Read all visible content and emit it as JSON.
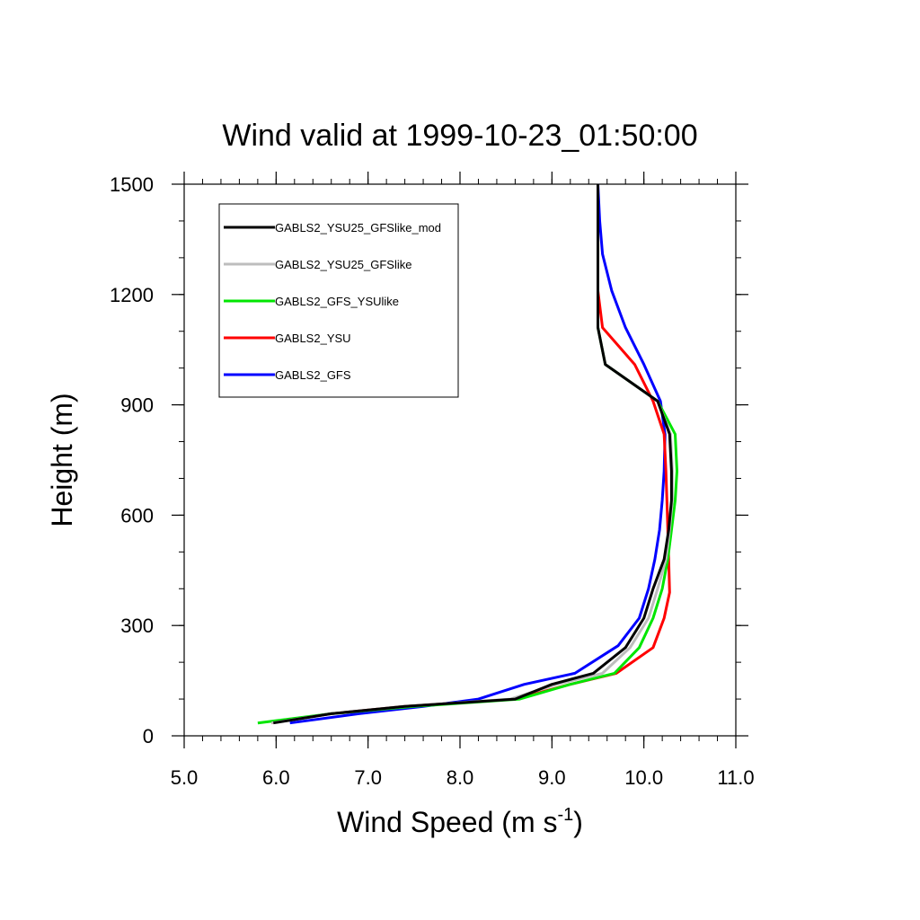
{
  "chart_data": {
    "type": "line",
    "title": "Wind valid at 1999-10-23_01:50:00",
    "xlabel": "Wind Speed (m s",
    "xlabel_superscript": "-1",
    "xlabel_suffix": ")",
    "ylabel": "Height (m)",
    "xlim": [
      5.0,
      11.0
    ],
    "ylim": [
      0,
      1500
    ],
    "xticks": [
      5.0,
      6.0,
      7.0,
      8.0,
      9.0,
      10.0,
      11.0
    ],
    "xtick_labels": [
      "5.0",
      "6.0",
      "7.0",
      "8.0",
      "9.0",
      "10.0",
      "11.0"
    ],
    "yticks": [
      0,
      300,
      600,
      900,
      1200,
      1500
    ],
    "ytick_labels": [
      "0",
      "300",
      "600",
      "900",
      "1200",
      "1500"
    ],
    "grid": false,
    "legend_position": "top-left",
    "series": [
      {
        "name": "GABLS2_YSU25_GFSlike_mod",
        "color": "#000000",
        "points": [
          [
            5.97,
            35
          ],
          [
            6.6,
            60
          ],
          [
            7.4,
            80
          ],
          [
            8.6,
            100
          ],
          [
            9.0,
            140
          ],
          [
            9.45,
            170
          ],
          [
            9.8,
            240
          ],
          [
            10.0,
            320
          ],
          [
            10.1,
            400
          ],
          [
            10.22,
            480
          ],
          [
            10.27,
            560
          ],
          [
            10.3,
            640
          ],
          [
            10.3,
            720
          ],
          [
            10.28,
            820
          ],
          [
            10.15,
            910
          ],
          [
            9.58,
            1010
          ],
          [
            9.5,
            1110
          ],
          [
            9.5,
            1210
          ],
          [
            9.5,
            1310
          ],
          [
            9.5,
            1400
          ],
          [
            9.5,
            1500
          ]
        ]
      },
      {
        "name": "GABLS2_YSU25_GFSlike",
        "color": "#bdbdbd",
        "points": [
          [
            5.95,
            35
          ],
          [
            6.6,
            60
          ],
          [
            7.4,
            80
          ],
          [
            8.55,
            100
          ],
          [
            9.05,
            140
          ],
          [
            9.55,
            170
          ],
          [
            9.85,
            240
          ],
          [
            10.05,
            320
          ],
          [
            10.15,
            400
          ],
          [
            10.24,
            480
          ],
          [
            10.28,
            560
          ],
          [
            10.31,
            640
          ],
          [
            10.31,
            720
          ],
          [
            10.29,
            820
          ],
          [
            10.15,
            910
          ],
          [
            9.58,
            1010
          ],
          [
            9.5,
            1110
          ],
          [
            9.5,
            1210
          ],
          [
            9.5,
            1310
          ],
          [
            9.5,
            1400
          ],
          [
            9.5,
            1500
          ]
        ]
      },
      {
        "name": "GABLS2_GFS_YSUlike",
        "color": "#00e600",
        "points": [
          [
            5.8,
            35
          ],
          [
            6.6,
            60
          ],
          [
            7.5,
            80
          ],
          [
            8.65,
            100
          ],
          [
            9.2,
            140
          ],
          [
            9.68,
            170
          ],
          [
            9.95,
            240
          ],
          [
            10.1,
            320
          ],
          [
            10.2,
            400
          ],
          [
            10.26,
            480
          ],
          [
            10.3,
            560
          ],
          [
            10.34,
            640
          ],
          [
            10.36,
            720
          ],
          [
            10.34,
            820
          ],
          [
            10.15,
            910
          ],
          [
            9.58,
            1010
          ],
          [
            9.5,
            1110
          ],
          [
            9.5,
            1210
          ],
          [
            9.5,
            1310
          ],
          [
            9.5,
            1400
          ],
          [
            9.5,
            1500
          ]
        ]
      },
      {
        "name": "GABLS2_YSU",
        "color": "#ff0000",
        "points": [
          [
            5.95,
            35
          ],
          [
            6.6,
            60
          ],
          [
            7.4,
            80
          ],
          [
            8.6,
            100
          ],
          [
            9.2,
            140
          ],
          [
            9.7,
            170
          ],
          [
            10.1,
            240
          ],
          [
            10.22,
            320
          ],
          [
            10.28,
            390
          ],
          [
            10.27,
            480
          ],
          [
            10.26,
            560
          ],
          [
            10.25,
            640
          ],
          [
            10.24,
            720
          ],
          [
            10.22,
            820
          ],
          [
            10.1,
            910
          ],
          [
            9.9,
            1010
          ],
          [
            9.55,
            1110
          ],
          [
            9.5,
            1210
          ],
          [
            9.5,
            1310
          ],
          [
            9.5,
            1400
          ],
          [
            9.5,
            1500
          ]
        ]
      },
      {
        "name": "GABLS2_GFS",
        "color": "#0000ff",
        "points": [
          [
            6.15,
            35
          ],
          [
            6.9,
            60
          ],
          [
            7.6,
            80
          ],
          [
            8.2,
            100
          ],
          [
            8.7,
            140
          ],
          [
            9.25,
            170
          ],
          [
            9.72,
            245
          ],
          [
            9.95,
            320
          ],
          [
            10.05,
            400
          ],
          [
            10.12,
            480
          ],
          [
            10.17,
            560
          ],
          [
            10.2,
            640
          ],
          [
            10.22,
            720
          ],
          [
            10.23,
            820
          ],
          [
            10.18,
            910
          ],
          [
            10.0,
            1010
          ],
          [
            9.8,
            1110
          ],
          [
            9.65,
            1210
          ],
          [
            9.55,
            1310
          ],
          [
            9.52,
            1400
          ],
          [
            9.5,
            1500
          ]
        ]
      }
    ]
  }
}
